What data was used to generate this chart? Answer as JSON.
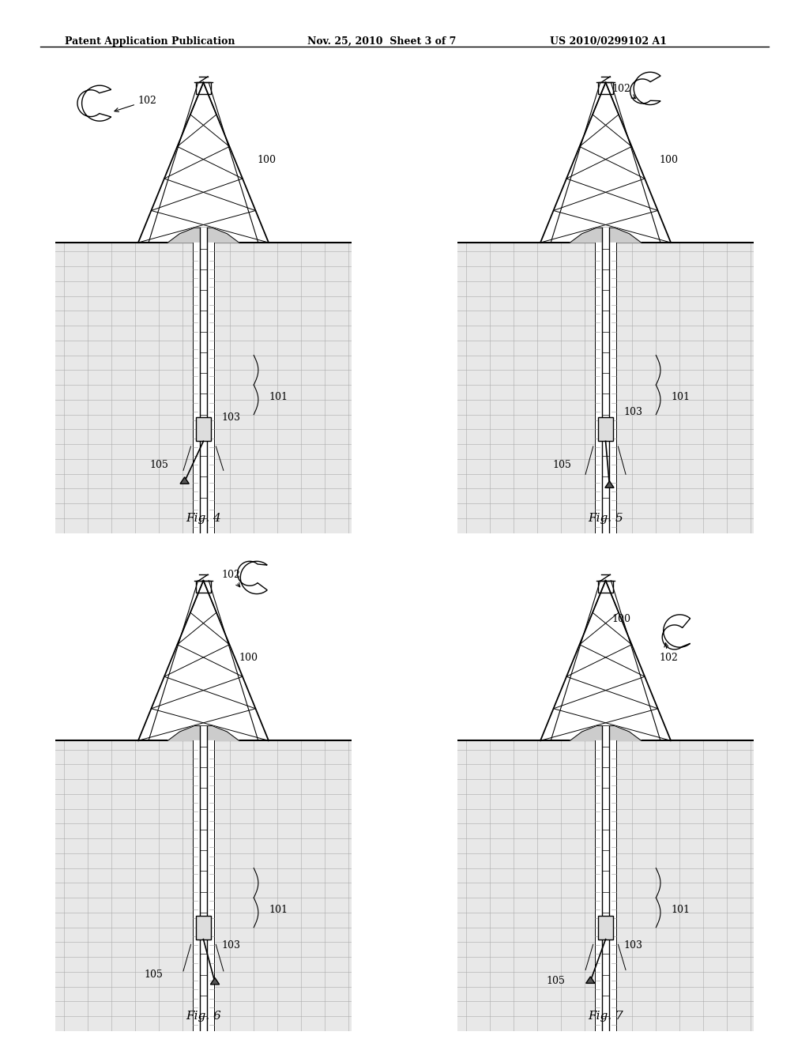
{
  "title_left": "Patent Application Publication",
  "title_mid": "Nov. 25, 2010  Sheet 3 of 7",
  "title_right": "US 2010/0299102 A1",
  "fig_labels": [
    "Fig. 4",
    "Fig. 5",
    "Fig. 6",
    "Fig. 7"
  ],
  "ref_labels": {
    "100": "100",
    "101": "101",
    "102": "102",
    "103": "103",
    "105": "105"
  },
  "bg_color": "#ffffff",
  "line_color": "#000000",
  "ground_color": "#d0d0d0",
  "hatch_color": "#888888"
}
